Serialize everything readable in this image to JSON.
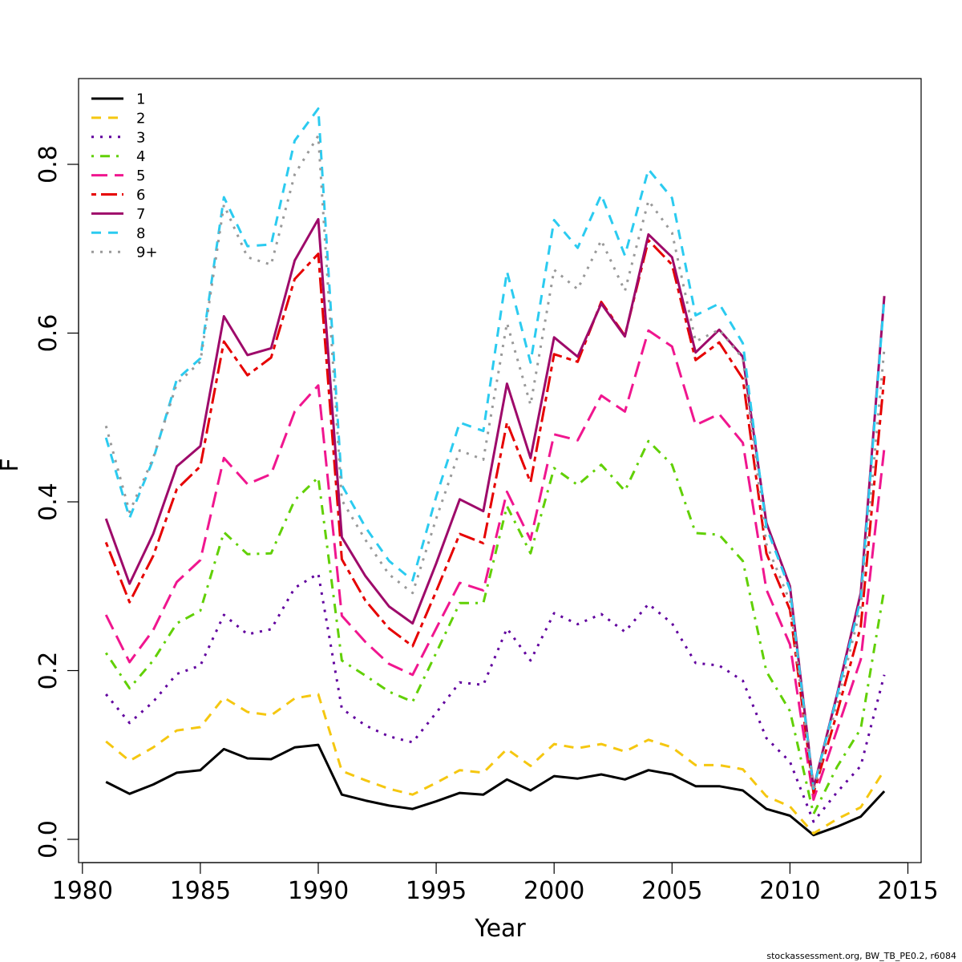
{
  "chart_data": {
    "type": "line",
    "title": "",
    "xlabel": "Year",
    "ylabel": "F",
    "xlim": [
      1980,
      2015
    ],
    "ylim": [
      0,
      0.9
    ],
    "xticks": [
      1980,
      1985,
      1990,
      1995,
      2000,
      2005,
      2010,
      2015
    ],
    "yticks": [
      0.0,
      0.2,
      0.4,
      0.6,
      0.8
    ],
    "ytick_labels": [
      "0.0",
      "0.2",
      "0.4",
      "0.6",
      "0.8"
    ],
    "grid": false,
    "legend_position": "top-left",
    "x": [
      1981,
      1982,
      1983,
      1984,
      1985,
      1986,
      1987,
      1988,
      1989,
      1990,
      1991,
      1992,
      1993,
      1994,
      1995,
      1996,
      1997,
      1998,
      1999,
      2000,
      2001,
      2002,
      2003,
      2004,
      2005,
      2006,
      2007,
      2008,
      2009,
      2010,
      2011,
      2012,
      2013,
      2014
    ],
    "series": [
      {
        "name": "1",
        "color": "#000000",
        "dash": "solid",
        "values": [
          0.068,
          0.054,
          0.065,
          0.079,
          0.082,
          0.107,
          0.096,
          0.095,
          0.109,
          0.112,
          0.053,
          0.046,
          0.04,
          0.036,
          0.045,
          0.055,
          0.053,
          0.071,
          0.058,
          0.075,
          0.072,
          0.077,
          0.071,
          0.082,
          0.077,
          0.063,
          0.063,
          0.058,
          0.036,
          0.028,
          0.005,
          0.015,
          0.027,
          0.057
        ]
      },
      {
        "name": "2",
        "color": "#F5C710",
        "dash": "dashed",
        "values": [
          0.116,
          0.093,
          0.109,
          0.129,
          0.133,
          0.168,
          0.151,
          0.147,
          0.167,
          0.172,
          0.081,
          0.07,
          0.06,
          0.053,
          0.067,
          0.082,
          0.079,
          0.107,
          0.087,
          0.113,
          0.108,
          0.113,
          0.104,
          0.118,
          0.109,
          0.088,
          0.088,
          0.083,
          0.051,
          0.039,
          0.007,
          0.024,
          0.038,
          0.082
        ]
      },
      {
        "name": "3",
        "color": "#61009E",
        "dash": "dotted",
        "values": [
          0.172,
          0.138,
          0.163,
          0.196,
          0.206,
          0.266,
          0.243,
          0.249,
          0.298,
          0.315,
          0.155,
          0.135,
          0.122,
          0.115,
          0.15,
          0.186,
          0.183,
          0.25,
          0.212,
          0.268,
          0.255,
          0.267,
          0.246,
          0.279,
          0.256,
          0.209,
          0.206,
          0.188,
          0.12,
          0.092,
          0.021,
          0.056,
          0.087,
          0.195
        ]
      },
      {
        "name": "4",
        "color": "#61D004",
        "dash": "dotdash",
        "values": [
          0.221,
          0.179,
          0.212,
          0.256,
          0.271,
          0.364,
          0.338,
          0.339,
          0.402,
          0.429,
          0.212,
          0.194,
          0.175,
          0.163,
          0.221,
          0.28,
          0.28,
          0.395,
          0.339,
          0.44,
          0.42,
          0.444,
          0.413,
          0.472,
          0.444,
          0.363,
          0.361,
          0.33,
          0.199,
          0.152,
          0.03,
          0.086,
          0.131,
          0.297
        ]
      },
      {
        "name": "5",
        "color": "#F0168F",
        "dash": "longdash",
        "values": [
          0.266,
          0.21,
          0.248,
          0.305,
          0.331,
          0.452,
          0.421,
          0.433,
          0.507,
          0.538,
          0.265,
          0.234,
          0.208,
          0.195,
          0.25,
          0.304,
          0.295,
          0.412,
          0.355,
          0.48,
          0.473,
          0.526,
          0.507,
          0.603,
          0.584,
          0.491,
          0.504,
          0.47,
          0.296,
          0.231,
          0.047,
          0.13,
          0.213,
          0.464
        ]
      },
      {
        "name": "6",
        "color": "#E60000",
        "dash": "twodash",
        "values": [
          0.352,
          0.281,
          0.336,
          0.415,
          0.442,
          0.59,
          0.55,
          0.571,
          0.664,
          0.694,
          0.332,
          0.283,
          0.25,
          0.229,
          0.294,
          0.362,
          0.351,
          0.494,
          0.423,
          0.575,
          0.566,
          0.637,
          0.597,
          0.71,
          0.681,
          0.568,
          0.589,
          0.546,
          0.339,
          0.272,
          0.055,
          0.15,
          0.252,
          0.549
        ]
      },
      {
        "name": "7",
        "color": "#9E0A6A",
        "dash": "solid",
        "values": [
          0.38,
          0.303,
          0.362,
          0.442,
          0.466,
          0.62,
          0.574,
          0.582,
          0.686,
          0.735,
          0.358,
          0.312,
          0.276,
          0.256,
          0.327,
          0.403,
          0.389,
          0.54,
          0.452,
          0.595,
          0.572,
          0.635,
          0.596,
          0.717,
          0.69,
          0.577,
          0.604,
          0.572,
          0.375,
          0.3,
          0.061,
          0.172,
          0.292,
          0.644
        ]
      },
      {
        "name": "8",
        "color": "#2BCBF0",
        "dash": "dashed",
        "values": [
          0.476,
          0.381,
          0.45,
          0.545,
          0.57,
          0.761,
          0.703,
          0.705,
          0.828,
          0.866,
          0.42,
          0.37,
          0.33,
          0.307,
          0.406,
          0.494,
          0.484,
          0.673,
          0.565,
          0.734,
          0.701,
          0.764,
          0.692,
          0.794,
          0.76,
          0.621,
          0.635,
          0.588,
          0.37,
          0.296,
          0.06,
          0.17,
          0.285,
          0.642
        ]
      },
      {
        "name": "9+",
        "color": "#999999",
        "dash": "dotted",
        "values": [
          0.49,
          0.388,
          0.452,
          0.54,
          0.566,
          0.752,
          0.69,
          0.681,
          0.788,
          0.834,
          0.402,
          0.355,
          0.314,
          0.292,
          0.38,
          0.461,
          0.45,
          0.612,
          0.515,
          0.675,
          0.652,
          0.71,
          0.65,
          0.757,
          0.719,
          0.59,
          0.604,
          0.57,
          0.35,
          0.282,
          0.058,
          0.161,
          0.275,
          0.582
        ]
      }
    ]
  },
  "footer_note": "stockassessment.org, BW_TB_PE0.2, r6084"
}
